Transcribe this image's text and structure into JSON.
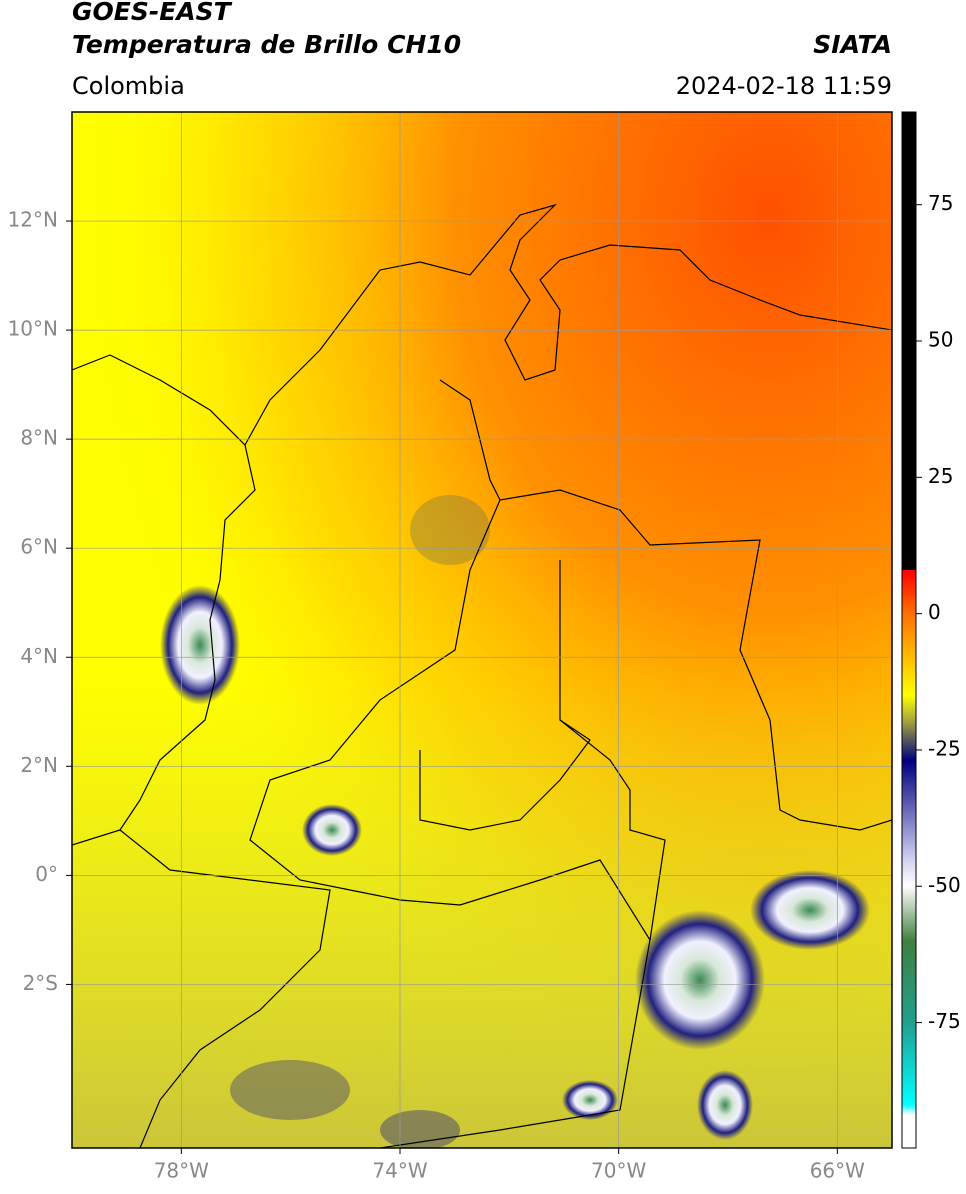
{
  "header": {
    "title": "GOES-EAST",
    "subtitle": "Temperatura de Brillo CH10",
    "source": "SIATA",
    "region": "Colombia",
    "timestamp": "2024-02-18 11:59"
  },
  "map": {
    "xlim": [
      -80,
      -65
    ],
    "ylim": [
      -5,
      14
    ],
    "xticks": [
      {
        "value": -78,
        "label": "78°W"
      },
      {
        "value": -74,
        "label": "74°W"
      },
      {
        "value": -70,
        "label": "70°W"
      },
      {
        "value": -66,
        "label": "66°W"
      }
    ],
    "yticks": [
      {
        "value": 12,
        "label": "12°N"
      },
      {
        "value": 10,
        "label": "10°N"
      },
      {
        "value": 8,
        "label": "8°N"
      },
      {
        "value": 6,
        "label": "6°N"
      },
      {
        "value": 4,
        "label": "4°N"
      },
      {
        "value": 2,
        "label": "2°N"
      },
      {
        "value": 0,
        "label": "0°"
      },
      {
        "value": -2,
        "label": "2°S"
      }
    ]
  },
  "colorbar": {
    "lim": [
      -98,
      92
    ],
    "ticks": [
      75,
      50,
      25,
      0,
      -25,
      -50,
      -75
    ]
  }
}
